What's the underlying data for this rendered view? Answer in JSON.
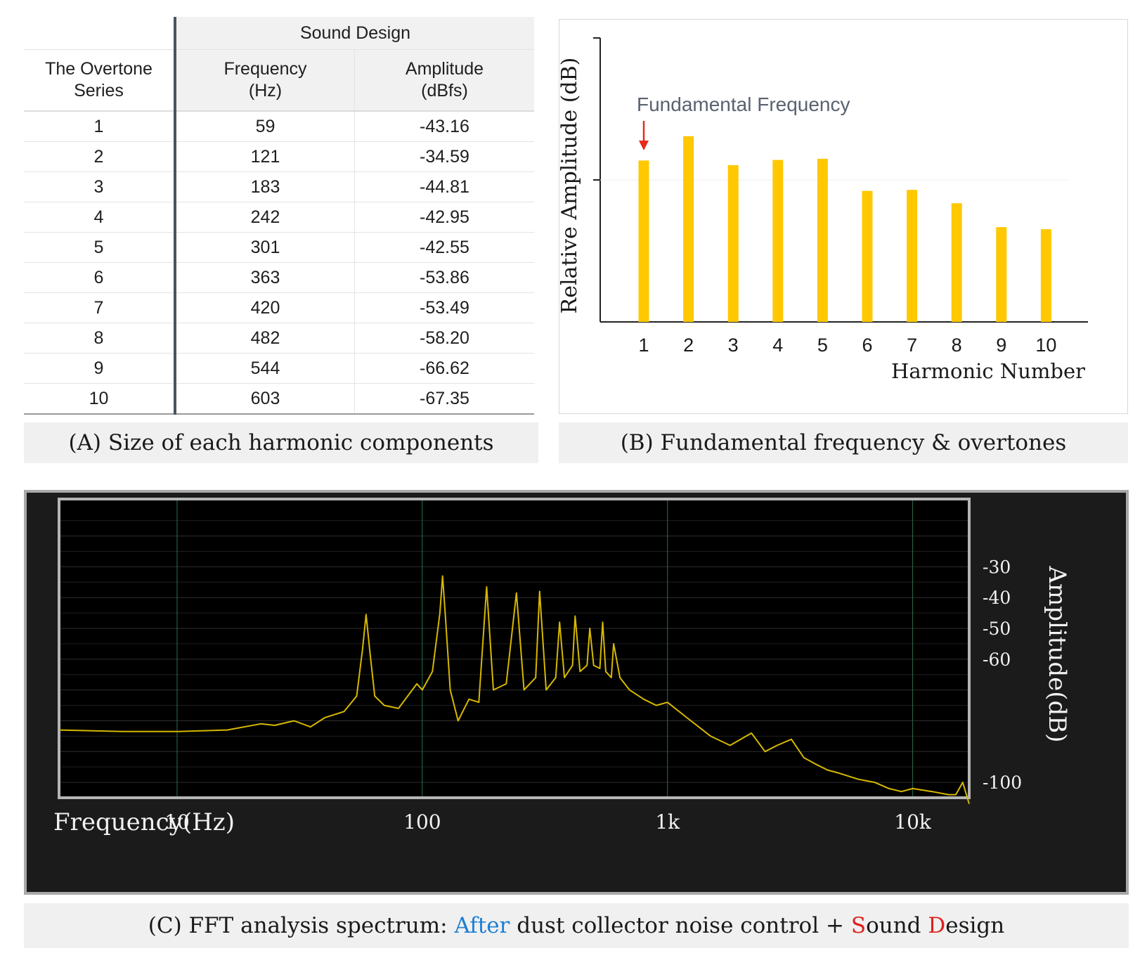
{
  "table": {
    "group_header": "Sound Design",
    "col_series_header": [
      "The Overtone",
      "Series"
    ],
    "col_freq_header": [
      "Frequency",
      "(Hz)"
    ],
    "col_amp_header": [
      "Amplitude",
      "(dBfs)"
    ],
    "rows": [
      {
        "n": "1",
        "freq": "59",
        "amp": "-43.16"
      },
      {
        "n": "2",
        "freq": "121",
        "amp": "-34.59"
      },
      {
        "n": "3",
        "freq": "183",
        "amp": "-44.81"
      },
      {
        "n": "4",
        "freq": "242",
        "amp": "-42.95"
      },
      {
        "n": "5",
        "freq": "301",
        "amp": "-42.55"
      },
      {
        "n": "6",
        "freq": "363",
        "amp": "-53.86"
      },
      {
        "n": "7",
        "freq": "420",
        "amp": "-53.49"
      },
      {
        "n": "8",
        "freq": "482",
        "amp": "-58.20"
      },
      {
        "n": "9",
        "freq": "544",
        "amp": "-66.62"
      },
      {
        "n": "10",
        "freq": "603",
        "amp": "-67.35"
      }
    ]
  },
  "captions": {
    "a": "(A) Size of each harmonic components",
    "b": "(B) Fundamental frequency & overtones",
    "c_prefix": "(C) FFT analysis spectrum: ",
    "c_after": "After",
    "c_mid": " dust collector noise control + ",
    "c_s": "S",
    "c_ound": "ound ",
    "c_d": "D",
    "c_esign": "esign"
  },
  "colors": {
    "bar": "#ffc800",
    "arrow": "#e8291c",
    "trace": "#d6b800",
    "grid_major": "#2d6e4c"
  },
  "chart_data": [
    {
      "type": "bar",
      "title": "",
      "annotation": "Fundamental Frequency",
      "annotation_target": "1",
      "categories": [
        "1",
        "2",
        "3",
        "4",
        "5",
        "6",
        "7",
        "8",
        "9",
        "10"
      ],
      "values": [
        -43.16,
        -34.59,
        -44.81,
        -42.95,
        -42.55,
        -53.86,
        -53.49,
        -58.2,
        -66.62,
        -67.35
      ],
      "xlabel": "Harmonic Number",
      "ylabel": "Relative Amplitude (dB)",
      "ylim": [
        -100,
        0
      ]
    },
    {
      "type": "line",
      "title": "",
      "xlabel": "Frequency(Hz)",
      "ylabel": "Amplitude(dB)",
      "xscale": "log",
      "xlim": [
        3.3,
        17000
      ],
      "ylim": [
        -105,
        -8
      ],
      "x_ticks": [
        10,
        100,
        1000,
        10000
      ],
      "x_tick_labels": [
        "10",
        "100",
        "1k",
        "10k"
      ],
      "y_ticks": [
        -30,
        -40,
        -50,
        -60,
        -100
      ],
      "y_tick_labels": [
        "-30",
        "-40",
        "-50",
        "-60",
        "-100"
      ],
      "series": [
        {
          "name": "spectrum",
          "x": [
            3.3,
            6,
            10,
            16,
            22,
            25,
            30,
            35,
            40,
            48,
            54,
            57,
            59,
            61,
            64,
            70,
            80,
            95,
            100,
            110,
            118,
            121,
            124,
            130,
            140,
            155,
            170,
            183,
            195,
            220,
            242,
            260,
            290,
            301,
            320,
            350,
            363,
            380,
            410,
            420,
            440,
            470,
            482,
            500,
            530,
            544,
            560,
            590,
            603,
            640,
            700,
            800,
            900,
            1000,
            1200,
            1500,
            1800,
            2200,
            2500,
            2800,
            3200,
            3600,
            4000,
            4500,
            5000,
            6000,
            7000,
            8000,
            9000,
            10000,
            12000,
            14000,
            15000,
            16000,
            17000
          ],
          "y": [
            -83,
            -83.5,
            -83.5,
            -83,
            -81,
            -81.5,
            -80,
            -82,
            -79,
            -77,
            -72,
            -57,
            -45.5,
            -57,
            -72,
            -75,
            -76,
            -68,
            -70,
            -64,
            -45,
            -33,
            -45,
            -70,
            -80,
            -73,
            -74,
            -36.5,
            -70,
            -68,
            -38.5,
            -70,
            -66,
            -38,
            -70,
            -66,
            -48,
            -66,
            -62,
            -46,
            -64,
            -62,
            -50,
            -62,
            -63,
            -48,
            -64,
            -66,
            -55,
            -66,
            -70,
            -73,
            -75,
            -74,
            -79,
            -85,
            -88,
            -84,
            -90,
            -88,
            -86,
            -92,
            -94,
            -96,
            -97,
            -99,
            -100,
            -102,
            -103,
            -102,
            -103,
            -104,
            -104,
            -100,
            -107
          ]
        }
      ]
    }
  ]
}
